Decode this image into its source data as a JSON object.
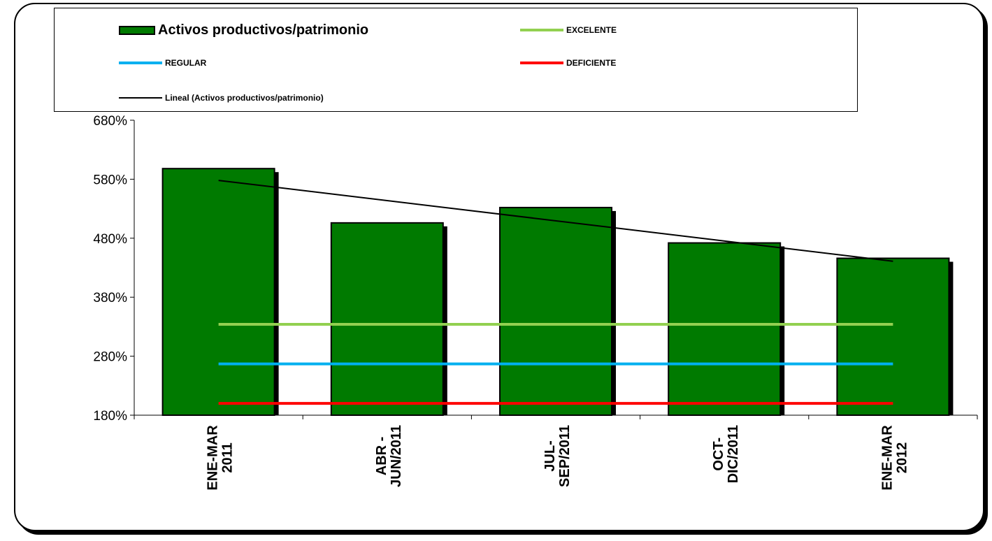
{
  "chart_data": {
    "type": "bar",
    "categories": [
      [
        "ENE-MAR",
        "2011"
      ],
      [
        "ABR -",
        "JUN/2011"
      ],
      [
        "JUL-",
        "SEP/2011"
      ],
      [
        "OCT-",
        "DIC/2011"
      ],
      [
        "ENE-MAR",
        "2012"
      ]
    ],
    "series": [
      {
        "name": "Activos productivos/patrimonio",
        "type": "bar",
        "color": "#007a00",
        "values": [
          598,
          506,
          532,
          472,
          446
        ]
      }
    ],
    "reference_lines": [
      {
        "name": "EXCELENTE",
        "value": 334,
        "color": "#92d050"
      },
      {
        "name": "REGULAR",
        "value": 267,
        "color": "#00b0f0"
      },
      {
        "name": "DEFICIENTE",
        "value": 200,
        "color": "#ff0000"
      }
    ],
    "trendline": {
      "name": "Lineal (Activos productivos/patrimonio)",
      "color": "#000000",
      "start": 578,
      "end": 441
    },
    "ylim": [
      180,
      680
    ],
    "yticks": [
      "180%",
      "280%",
      "380%",
      "480%",
      "580%",
      "680%"
    ],
    "ytick_values": [
      180,
      280,
      380,
      480,
      580,
      680
    ],
    "legend_position": "top",
    "grid": false
  }
}
